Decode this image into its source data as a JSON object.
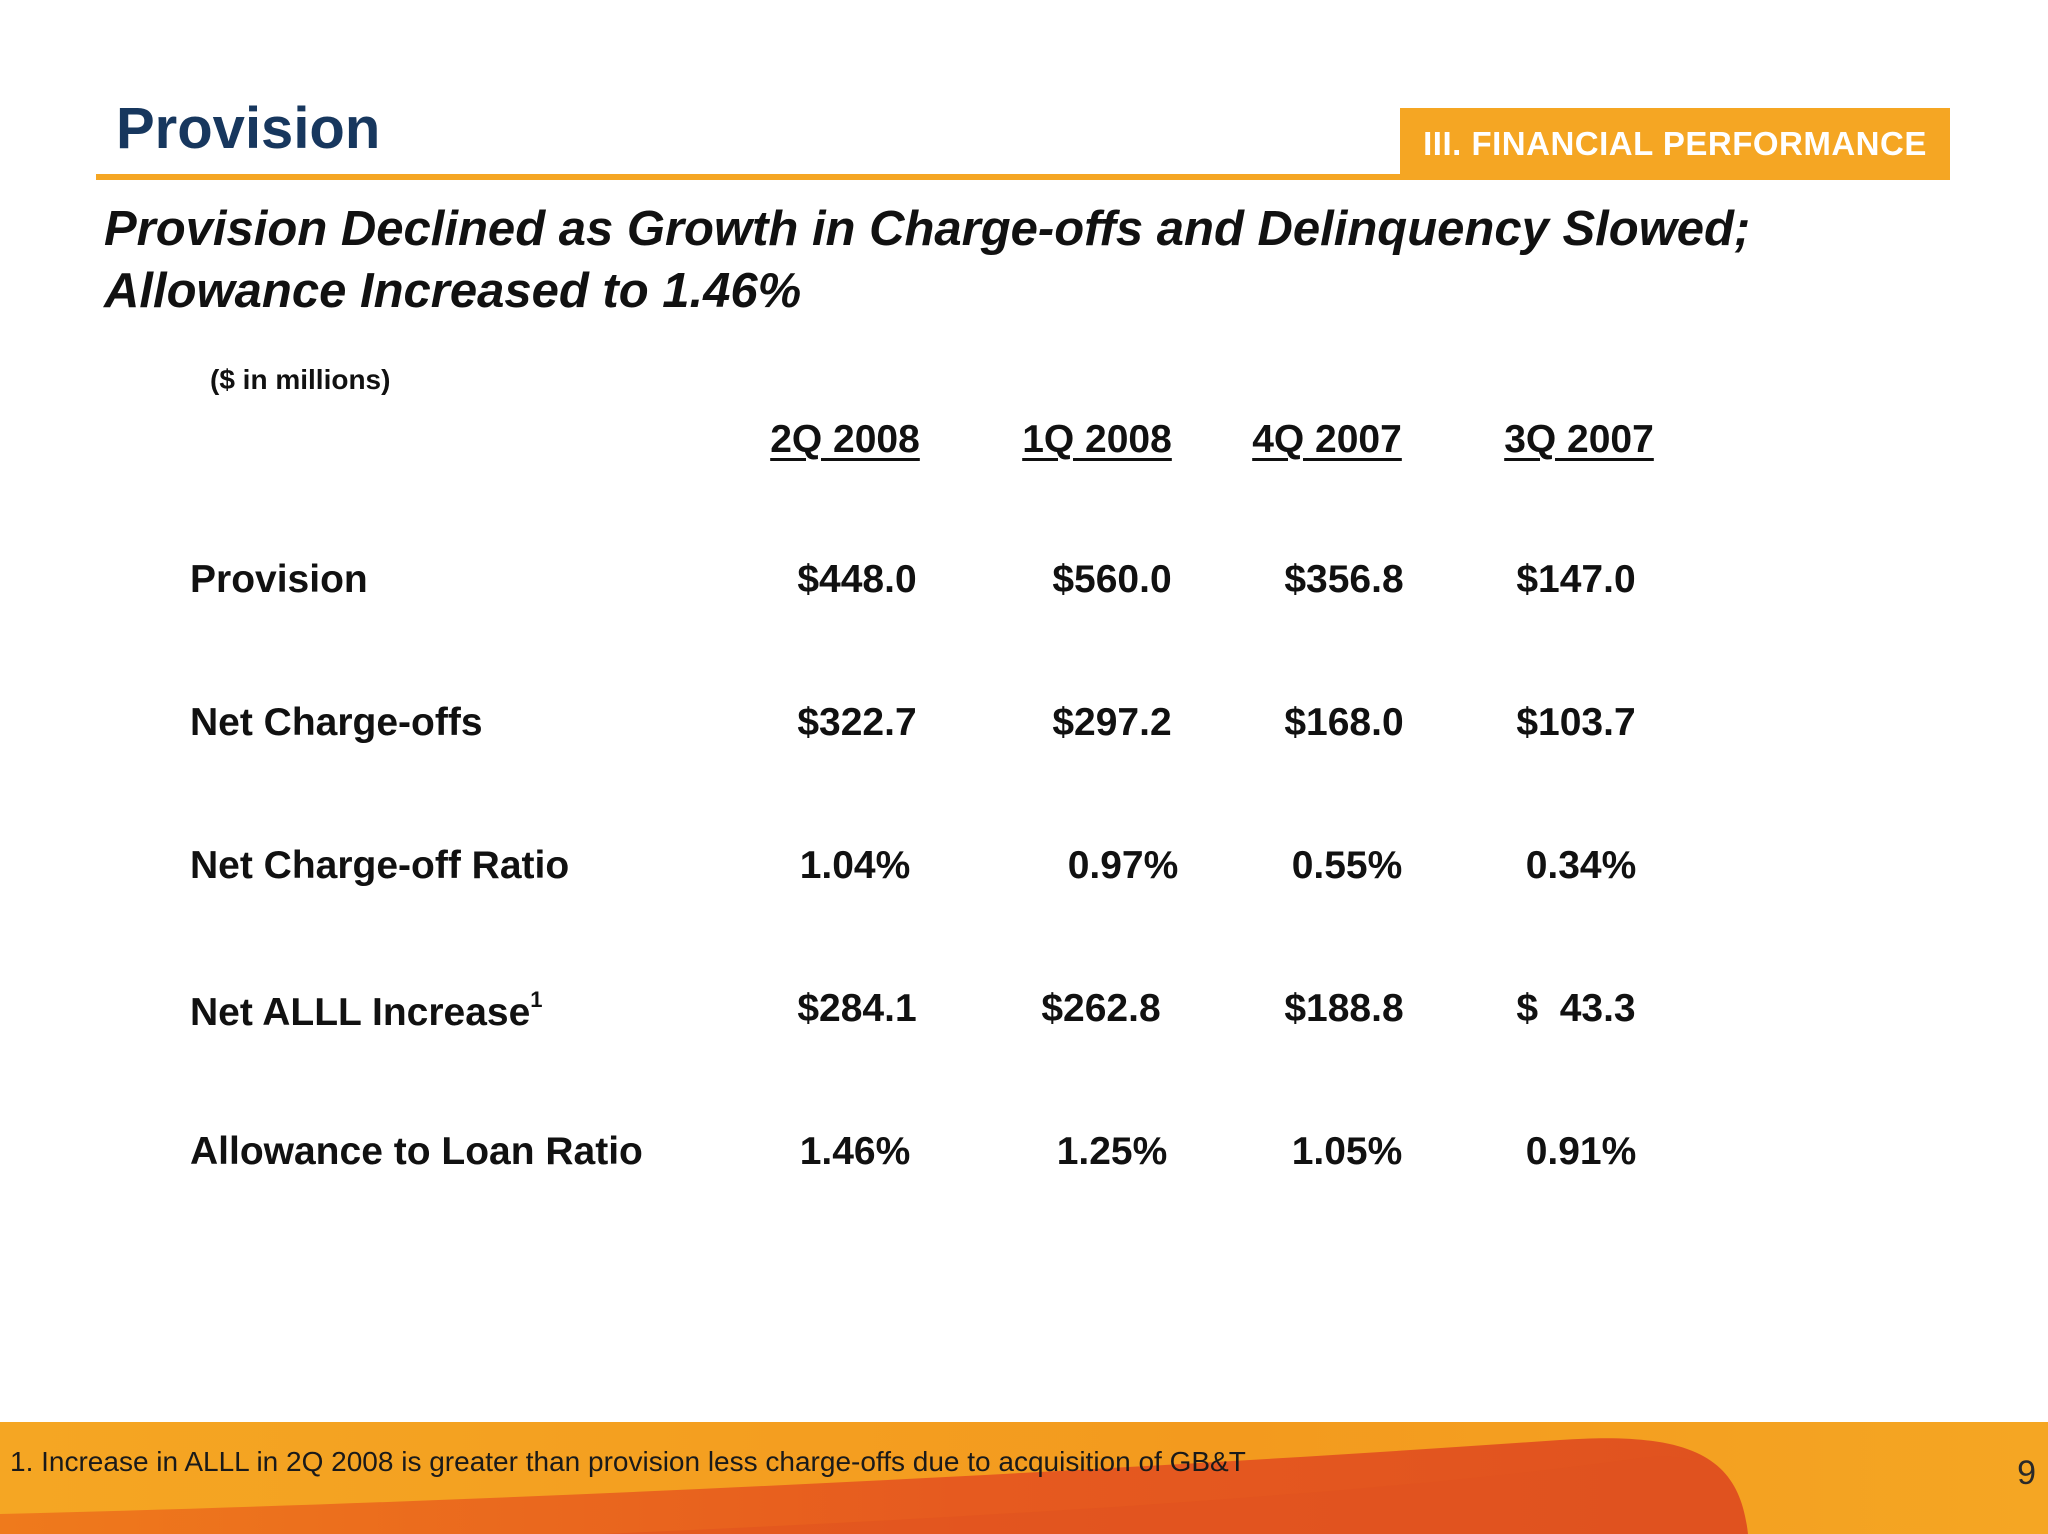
{
  "header": {
    "title": "Provision",
    "section_badge": "III. FINANCIAL PERFORMANCE"
  },
  "subtitle": {
    "line1": "Provision Declined as Growth in Charge-offs and Delinquency Slowed;",
    "line2": "Allowance Increased to 1.46%"
  },
  "table": {
    "units": "($ in millions)",
    "columns": [
      "2Q 2008",
      "1Q 2008",
      "4Q 2007",
      "3Q 2007"
    ],
    "rows": [
      {
        "label": "Provision",
        "footnote_marker": "",
        "values": [
          "$448.0",
          "$560.0",
          "$356.8",
          "$147.0"
        ]
      },
      {
        "label": "Net Charge-offs",
        "footnote_marker": "",
        "values": [
          "$322.7",
          "$297.2",
          "$168.0",
          "$103.7"
        ]
      },
      {
        "label": "Net Charge-off Ratio",
        "footnote_marker": "",
        "values": [
          "1.04%",
          "0.97%",
          "0.55%",
          "0.34%"
        ]
      },
      {
        "label": "Net ALLL Increase",
        "footnote_marker": "1",
        "values": [
          "$284.1",
          "$262.8",
          "$188.8",
          "$  43.3"
        ]
      },
      {
        "label": "Allowance to Loan Ratio",
        "footnote_marker": "",
        "values": [
          "1.46%",
          "1.25%",
          "1.05%",
          "0.91%"
        ]
      }
    ]
  },
  "footer": {
    "footnote": "1.  Increase in ALLL in 2Q 2008 is greater than provision less charge-offs due to acquisition of GB&T",
    "page_number": "9"
  },
  "colors": {
    "title": "#17375e",
    "accent": "#f5a623",
    "footer_dark": "#e0521f"
  }
}
